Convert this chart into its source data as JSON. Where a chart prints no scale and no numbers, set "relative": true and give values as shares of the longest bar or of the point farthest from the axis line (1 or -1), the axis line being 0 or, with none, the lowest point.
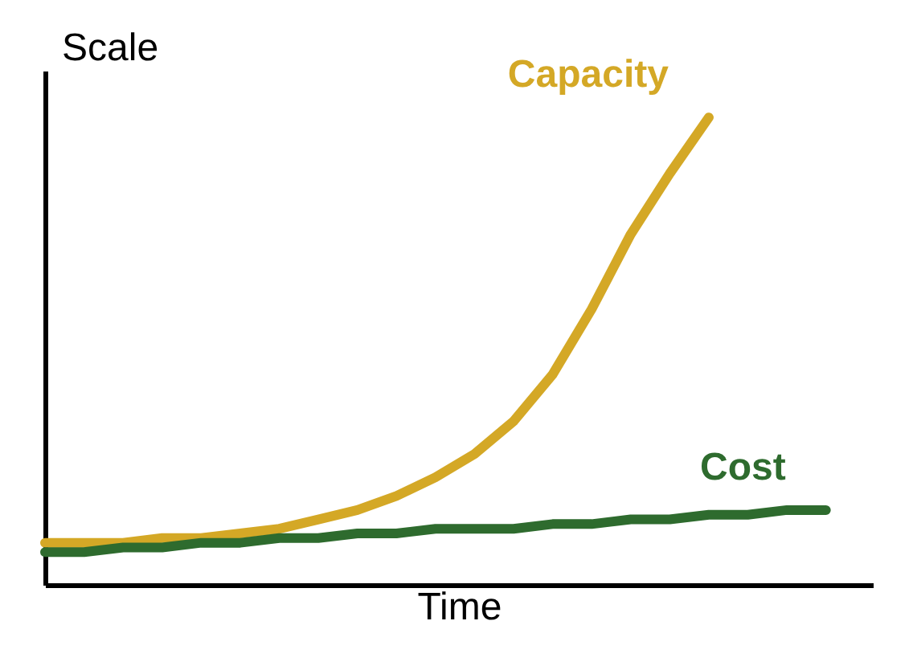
{
  "chart_data": {
    "type": "line",
    "relative": true,
    "xlabel": "Time",
    "ylabel": "Scale",
    "categories": [
      null,
      null,
      null,
      null,
      null,
      null,
      null,
      null,
      null,
      null,
      null,
      null,
      null,
      null,
      null,
      null,
      null,
      null,
      null,
      null,
      null
    ],
    "series": [
      {
        "name": "Capacity",
        "color": "#d4a826",
        "values": [
          0.09,
          0.09,
          0.09,
          0.1,
          0.1,
          0.11,
          0.12,
          0.14,
          0.16,
          0.19,
          0.23,
          0.28,
          0.35,
          0.45,
          0.59,
          0.75,
          0.88,
          1.0,
          null,
          null,
          null
        ]
      },
      {
        "name": "Cost",
        "color": "#2e6b2e",
        "values": [
          0.07,
          0.07,
          0.08,
          0.08,
          0.09,
          0.09,
          0.1,
          0.1,
          0.11,
          0.11,
          0.12,
          0.12,
          0.12,
          0.13,
          0.13,
          0.14,
          0.14,
          0.15,
          0.15,
          0.16,
          0.16
        ]
      }
    ],
    "grid": false,
    "line_style": "solid",
    "marker": "none"
  }
}
